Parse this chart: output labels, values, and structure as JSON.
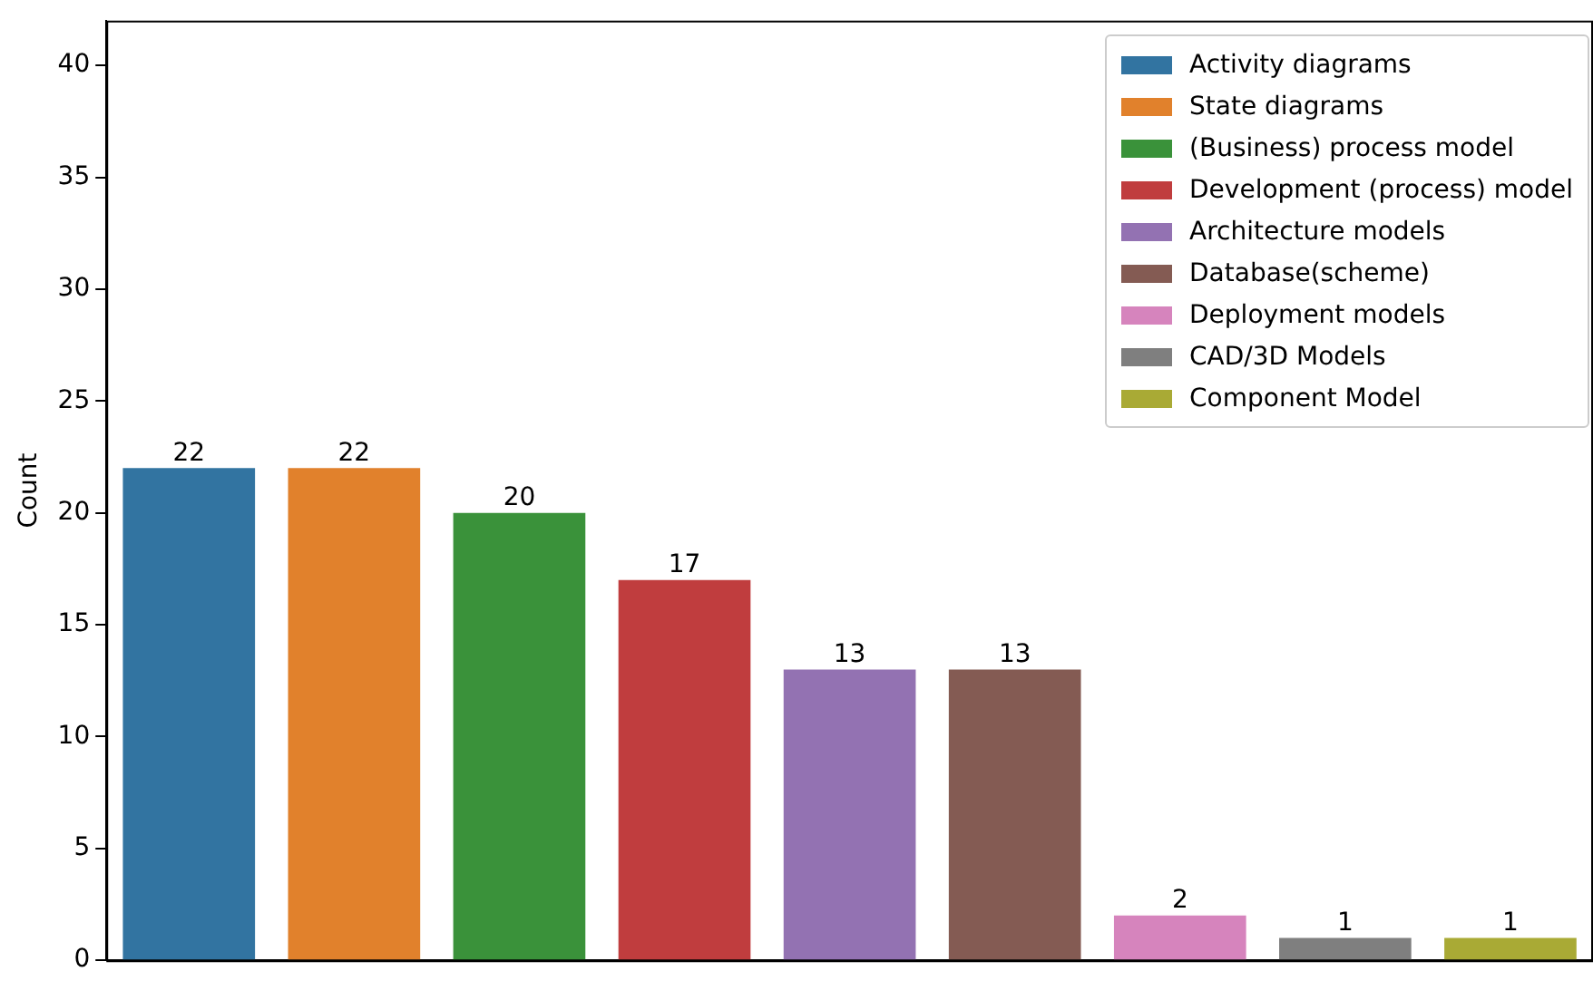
{
  "chart_data": {
    "type": "bar",
    "ylabel": "Count",
    "categories": [
      null,
      null,
      null,
      null,
      null,
      null,
      null,
      null,
      null
    ],
    "series": [
      {
        "name": "Activity diagrams",
        "color": "#3274a1",
        "values": [
          22,
          null,
          null,
          null,
          null,
          null,
          null,
          null,
          null
        ]
      },
      {
        "name": "State diagrams",
        "color": "#e1812c",
        "values": [
          null,
          22,
          null,
          null,
          null,
          null,
          null,
          null,
          null
        ]
      },
      {
        "name": "(Business) process model",
        "color": "#3a923a",
        "values": [
          null,
          null,
          20,
          null,
          null,
          null,
          null,
          null,
          null
        ]
      },
      {
        "name": "Development (process) model",
        "color": "#c03d3e",
        "values": [
          null,
          null,
          null,
          17,
          null,
          null,
          null,
          null,
          null
        ]
      },
      {
        "name": "Architecture models",
        "color": "#9372b2",
        "values": [
          null,
          null,
          null,
          null,
          13,
          null,
          null,
          null,
          null
        ]
      },
      {
        "name": "Database(scheme)",
        "color": "#845b53",
        "values": [
          null,
          null,
          null,
          null,
          null,
          13,
          null,
          null,
          null
        ]
      },
      {
        "name": "Deployment models",
        "color": "#d684bd",
        "values": [
          null,
          null,
          null,
          null,
          null,
          null,
          2,
          null,
          null
        ]
      },
      {
        "name": "CAD/3D Models",
        "color": "#7f7f7f",
        "values": [
          null,
          null,
          null,
          null,
          null,
          null,
          null,
          1,
          null
        ]
      },
      {
        "name": "Component Model",
        "color": "#a9aa35",
        "values": [
          null,
          null,
          null,
          null,
          null,
          null,
          null,
          null,
          1
        ]
      }
    ],
    "stacked": true,
    "ylim": [
      0,
      42
    ],
    "yticks": [
      0,
      5,
      10,
      15,
      20,
      25,
      30,
      35,
      40
    ],
    "grid": false,
    "legend": "top right",
    "data_labels": true,
    "tick_labels": "y"
  }
}
